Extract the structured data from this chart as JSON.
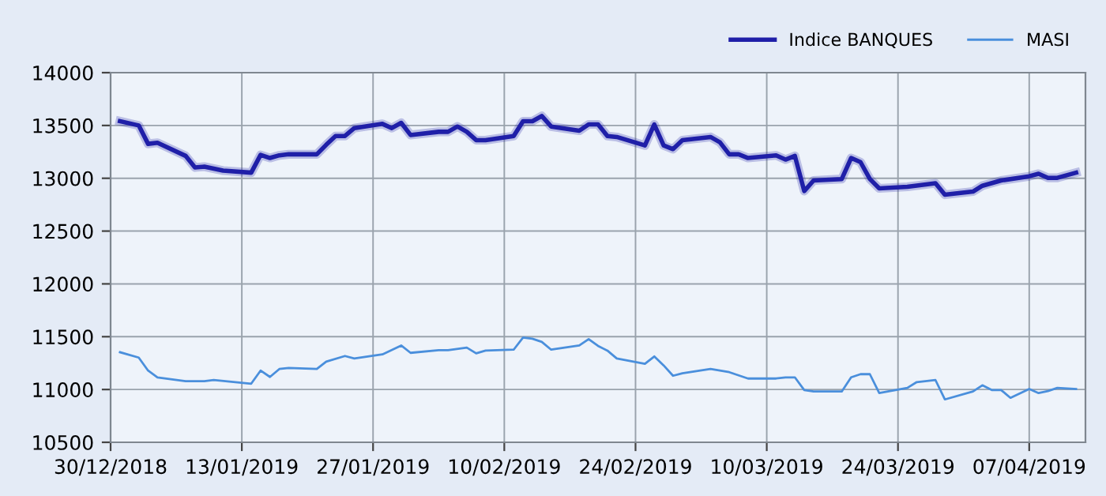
{
  "chart_data": {
    "type": "line",
    "xlim": [
      "2018-12-30",
      "2019-04-13"
    ],
    "xticks": [
      {
        "value": "2018-12-30",
        "label": "30/12/2018"
      },
      {
        "value": "2019-01-13",
        "label": "13/01/2019"
      },
      {
        "value": "2019-01-27",
        "label": "27/01/2019"
      },
      {
        "value": "2019-02-10",
        "label": "10/02/2019"
      },
      {
        "value": "2019-02-24",
        "label": "24/02/2019"
      },
      {
        "value": "2019-03-10",
        "label": "10/03/2019"
      },
      {
        "value": "2019-03-24",
        "label": "24/03/2019"
      },
      {
        "value": "2019-04-07",
        "label": "07/04/2019"
      }
    ],
    "ylim": [
      10500,
      14000
    ],
    "yticks": [
      10500,
      11000,
      11500,
      12000,
      12500,
      13000,
      13500,
      14000
    ],
    "grid": true,
    "legend": "top right",
    "marker": "none",
    "line_style": "solid",
    "series": [
      {
        "name": "Indice BANQUES",
        "color": "#1f1fa8",
        "x": [
          "2018-12-31",
          "2019-01-02",
          "2019-01-03",
          "2019-01-04",
          "2019-01-07",
          "2019-01-08",
          "2019-01-09",
          "2019-01-11",
          "2019-01-14",
          "2019-01-15",
          "2019-01-16",
          "2019-01-17",
          "2019-01-18",
          "2019-01-21",
          "2019-01-22",
          "2019-01-23",
          "2019-01-24",
          "2019-01-25",
          "2019-01-28",
          "2019-01-29",
          "2019-01-30",
          "2019-01-31",
          "2019-02-03",
          "2019-02-04",
          "2019-02-05",
          "2019-02-06",
          "2019-02-07",
          "2019-02-08",
          "2019-02-11",
          "2019-02-12",
          "2019-02-13",
          "2019-02-14",
          "2019-02-15",
          "2019-02-18",
          "2019-02-19",
          "2019-02-20",
          "2019-02-21",
          "2019-02-22",
          "2019-02-25",
          "2019-02-26",
          "2019-02-27",
          "2019-02-28",
          "2019-03-01",
          "2019-03-04",
          "2019-03-05",
          "2019-03-06",
          "2019-03-07",
          "2019-03-08",
          "2019-03-11",
          "2019-03-12",
          "2019-03-13",
          "2019-03-14",
          "2019-03-15",
          "2019-03-18",
          "2019-03-19",
          "2019-03-20",
          "2019-03-21",
          "2019-03-22",
          "2019-03-25",
          "2019-03-28",
          "2019-03-29",
          "2019-04-01",
          "2019-04-02",
          "2019-04-04",
          "2019-04-07",
          "2019-04-08",
          "2019-04-09",
          "2019-04-10",
          "2019-04-12"
        ],
        "values": [
          13540,
          13500,
          13326,
          13336,
          13212,
          13102,
          13110,
          13073,
          13053,
          13221,
          13192,
          13217,
          13227,
          13227,
          13317,
          13400,
          13400,
          13475,
          13515,
          13475,
          13525,
          13410,
          13440,
          13440,
          13490,
          13440,
          13361,
          13361,
          13400,
          13540,
          13540,
          13590,
          13490,
          13450,
          13510,
          13510,
          13400,
          13391,
          13311,
          13510,
          13311,
          13276,
          13361,
          13391,
          13341,
          13227,
          13227,
          13192,
          13217,
          13177,
          13212,
          12879,
          12979,
          12993,
          13192,
          13153,
          12993,
          12904,
          12919,
          12953,
          12844,
          12874,
          12929,
          12979,
          13019,
          13043,
          13004,
          13004,
          13053
        ]
      },
      {
        "name": "MASI",
        "color": "#4a8fdc",
        "x": [
          "2018-12-31",
          "2019-01-02",
          "2019-01-03",
          "2019-01-04",
          "2019-01-07",
          "2019-01-09",
          "2019-01-10",
          "2019-01-14",
          "2019-01-15",
          "2019-01-16",
          "2019-01-17",
          "2019-01-18",
          "2019-01-21",
          "2019-01-22",
          "2019-01-24",
          "2019-01-25",
          "2019-01-28",
          "2019-01-30",
          "2019-01-31",
          "2019-02-03",
          "2019-02-04",
          "2019-02-06",
          "2019-02-07",
          "2019-02-08",
          "2019-02-11",
          "2019-02-12",
          "2019-02-13",
          "2019-02-14",
          "2019-02-15",
          "2019-02-18",
          "2019-02-19",
          "2019-02-20",
          "2019-02-21",
          "2019-02-22",
          "2019-02-25",
          "2019-02-26",
          "2019-02-27",
          "2019-02-28",
          "2019-03-01",
          "2019-03-04",
          "2019-03-06",
          "2019-03-08",
          "2019-03-11",
          "2019-03-12",
          "2019-03-13",
          "2019-03-14",
          "2019-03-15",
          "2019-03-18",
          "2019-03-19",
          "2019-03-20",
          "2019-03-21",
          "2019-03-22",
          "2019-03-25",
          "2019-03-26",
          "2019-03-28",
          "2019-03-29",
          "2019-04-01",
          "2019-04-02",
          "2019-04-03",
          "2019-04-04",
          "2019-04-05",
          "2019-04-07",
          "2019-04-08",
          "2019-04-09",
          "2019-04-10",
          "2019-04-12"
        ],
        "values": [
          11353,
          11302,
          11179,
          11115,
          11079,
          11079,
          11089,
          11055,
          11179,
          11119,
          11194,
          11204,
          11194,
          11264,
          11317,
          11294,
          11332,
          11417,
          11347,
          11372,
          11372,
          11397,
          11342,
          11368,
          11377,
          11492,
          11481,
          11451,
          11377,
          11417,
          11477,
          11413,
          11368,
          11294,
          11243,
          11313,
          11228,
          11130,
          11153,
          11194,
          11164,
          11104,
          11104,
          11115,
          11115,
          10995,
          10981,
          10981,
          11115,
          11145,
          11145,
          10966,
          11015,
          11070,
          11089,
          10906,
          10981,
          11040,
          10995,
          10995,
          10921,
          11005,
          10966,
          10985,
          11015,
          11005
        ]
      }
    ]
  }
}
